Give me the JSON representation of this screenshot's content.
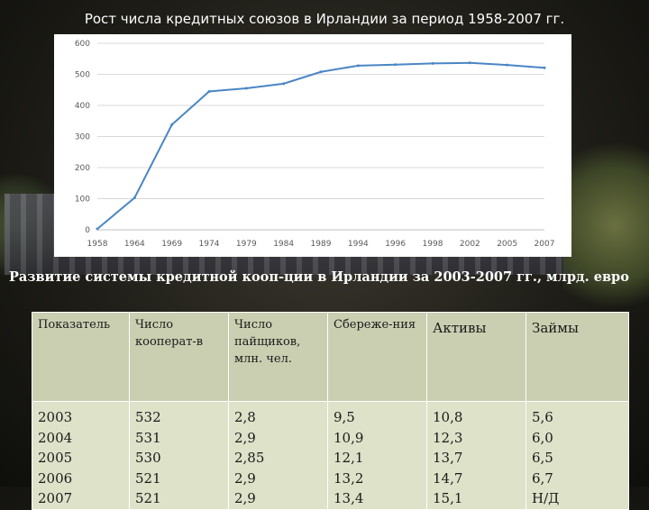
{
  "header": {
    "title": "Рост числа кредитных союзов в Ирландии за период 1958-2007 гг."
  },
  "chart_data": {
    "type": "line",
    "title": "",
    "xlabel": "",
    "ylabel": "",
    "categories": [
      "1958",
      "1964",
      "1969",
      "1974",
      "1979",
      "1984",
      "1989",
      "1994",
      "1996",
      "1998",
      "2002",
      "2005",
      "2007"
    ],
    "series": [
      {
        "values": [
          3,
          103,
          338,
          445,
          455,
          470,
          508,
          528,
          531,
          535,
          537,
          530,
          521
        ]
      }
    ],
    "ylim": [
      0,
      600
    ],
    "yticks": [
      0,
      100,
      200,
      300,
      400,
      500,
      600
    ],
    "grid": true,
    "legend": "none",
    "color": "#4a86c5"
  },
  "table_section": {
    "title": "Развитие системы кредитной кооп-ции в Ирландии за 2003-2007 гг., млрд. евро",
    "columns": [
      "Показатель",
      "Число кооперат-в",
      "Число пайщиков, млн. чел.",
      "Сбереже-ния",
      "Активы",
      "Займы"
    ],
    "rows": [
      [
        "2003",
        "532",
        "2,8",
        "9,5",
        "10,8",
        "5,6"
      ],
      [
        "2004",
        "531",
        "2,9",
        "10,9",
        "12,3",
        "6,0"
      ],
      [
        "2005",
        "530",
        "2,85",
        "12,1",
        "13,7",
        "6,5"
      ],
      [
        "2006",
        "521",
        "2,9",
        "13,2",
        "14,7",
        "6,7"
      ],
      [
        "2007",
        "521",
        "2,9",
        "13,4",
        "15,1",
        "Н/Д"
      ]
    ]
  }
}
